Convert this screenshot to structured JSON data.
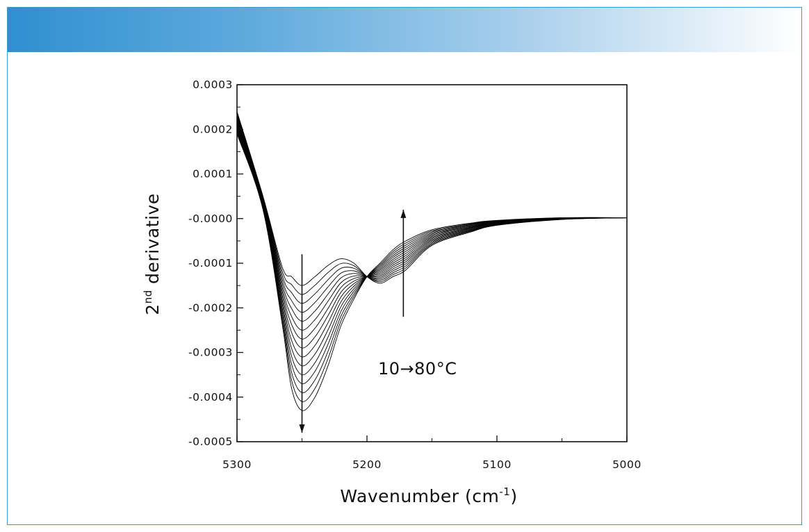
{
  "colors": {
    "band_start": "#2f8fd0",
    "band_end": "#ffffff",
    "frame_border": "#3a9bd3",
    "curve_color": "#000000"
  },
  "chart_data": {
    "type": "line",
    "xlabel": "Wavenumber (cm",
    "xlabel_sup": "-1",
    "xlabel_tail": ")",
    "ylabel": "2",
    "ylabel_sup": "nd",
    "ylabel_tail": " derivative",
    "xlim": [
      5300,
      5000
    ],
    "ylim": [
      -0.0005,
      0.0003
    ],
    "x_reversed": true,
    "x_ticks": [
      5300,
      5200,
      5100,
      5000
    ],
    "x_tick_labels": [
      "5300",
      "5200",
      "5100",
      "5000"
    ],
    "y_ticks": [
      0.0003,
      0.0002,
      0.0001,
      0,
      -0.0001,
      -0.0002,
      -0.0003,
      -0.0004,
      -0.0005
    ],
    "y_tick_labels": [
      "0.0003",
      "0.0002",
      "0.0001",
      "-0.0000",
      "-0.0001",
      "-0.0002",
      "-0.0003",
      "-0.0004",
      "-0.0005"
    ],
    "grid": false,
    "annotation": "10→80°C",
    "arrows": [
      {
        "direction": "down",
        "x": 5250,
        "y_from": -8e-05,
        "y_to": -0.00048
      },
      {
        "direction": "up",
        "x": 5172,
        "y_from": -0.00022,
        "y_to": 2e-05
      }
    ],
    "series_note": "15 overlapping spectra, temperature increasing from 10 to 80°C",
    "series_count": 15,
    "series_endpoints": {
      "first": {
        "x": [
          5300,
          5280,
          5265,
          5258,
          5250,
          5240,
          5230,
          5220,
          5210,
          5200,
          5190,
          5180,
          5170,
          5150,
          5120,
          5100,
          5050,
          5000
        ],
        "y": [
          0.00024,
          5e-05,
          -0.00011,
          -0.00013,
          -0.00015,
          -0.00013,
          -0.000105,
          -9e-05,
          -0.0001,
          -0.00013,
          -0.000145,
          -0.00013,
          -0.000115,
          -6e-05,
          -3e-05,
          -1.5e-05,
          -2e-06,
          2e-06
        ]
      },
      "last": {
        "x": [
          5300,
          5280,
          5265,
          5258,
          5250,
          5240,
          5230,
          5220,
          5210,
          5200,
          5190,
          5180,
          5170,
          5150,
          5120,
          5100,
          5050,
          5000
        ],
        "y": [
          0.00019,
          2e-05,
          -0.00024,
          -0.00038,
          -0.00043,
          -0.0004,
          -0.00033,
          -0.00024,
          -0.00018,
          -0.00013,
          -0.0001,
          -7e-05,
          -5e-05,
          -2.5e-05,
          -1e-05,
          -4e-06,
          2e-06,
          2e-06
        ]
      }
    }
  }
}
